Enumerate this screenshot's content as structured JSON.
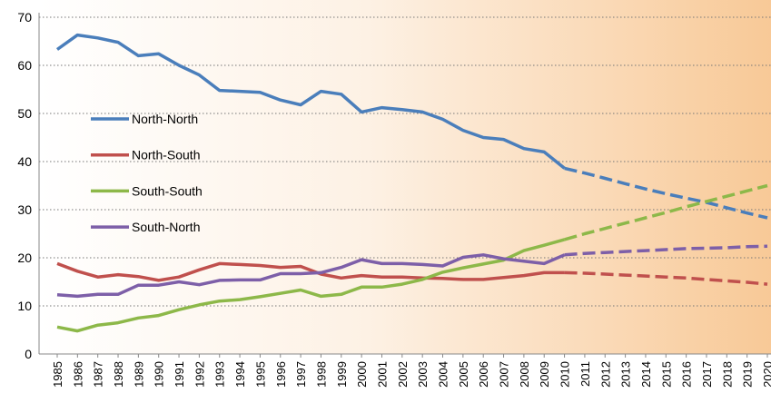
{
  "chart_data": {
    "type": "line",
    "categories": [
      "1985",
      "1986",
      "1987",
      "1988",
      "1989",
      "1990",
      "1991",
      "1992",
      "1993",
      "1994",
      "1995",
      "1996",
      "1997",
      "1998",
      "1999",
      "2000",
      "2001",
      "2002",
      "2003",
      "2004",
      "2005",
      "2006",
      "2007",
      "2008",
      "2009",
      "2010",
      "2011",
      "2012",
      "2013",
      "2014",
      "2015",
      "2016",
      "2017",
      "2018",
      "2019",
      "2020"
    ],
    "series": [
      {
        "name": "North-North",
        "color": "#4a7ebb",
        "values": [
          63.3,
          66.3,
          65.7,
          64.8,
          62,
          62.4,
          60,
          58,
          54.8,
          54.6,
          54.4,
          52.8,
          51.8,
          54.6,
          54,
          50.3,
          51.2,
          50.8,
          50.3,
          48.8,
          46.5,
          45,
          44.6,
          42.7,
          42,
          38.6,
          37.6,
          36.5,
          35.4,
          34.3,
          33.3,
          32.4,
          31.5,
          30.4,
          29.3,
          28.3
        ]
      },
      {
        "name": "North-South",
        "color": "#c0504d",
        "values": [
          18.8,
          17.2,
          16,
          16.5,
          16.1,
          15.3,
          16,
          17.5,
          18.8,
          18.6,
          18.4,
          18,
          18.2,
          16.6,
          15.8,
          16.3,
          16,
          16,
          15.8,
          15.7,
          15.5,
          15.5,
          15.9,
          16.3,
          16.9,
          16.9,
          16.8,
          16.6,
          16.4,
          16.2,
          16,
          15.8,
          15.5,
          15.2,
          14.9,
          14.5
        ]
      },
      {
        "name": "South-South",
        "color": "#8db849",
        "values": [
          5.6,
          4.8,
          6,
          6.5,
          7.5,
          8,
          9.2,
          10.2,
          11,
          11.3,
          11.9,
          12.6,
          13.3,
          12,
          12.4,
          13.9,
          13.9,
          14.5,
          15.5,
          17,
          17.9,
          18.7,
          19.5,
          21.5,
          22.6,
          23.8,
          25,
          26.1,
          27.2,
          28.3,
          29.4,
          30.6,
          31.7,
          32.8,
          33.9,
          35
        ]
      },
      {
        "name": "South-North",
        "color": "#7d5fa8",
        "values": [
          12.3,
          12,
          12.4,
          12.4,
          14.3,
          14.3,
          15,
          14.4,
          15.3,
          15.4,
          15.4,
          16.7,
          16.7,
          16.9,
          18,
          19.6,
          18.8,
          18.8,
          18.6,
          18.3,
          20.1,
          20.6,
          19.8,
          19.3,
          18.8,
          20.6,
          20.9,
          21.1,
          21.3,
          21.5,
          21.7,
          21.9,
          22,
          22.1,
          22.3,
          22.4
        ]
      }
    ],
    "dashed_from": "2010",
    "ylim": [
      0,
      70
    ],
    "yticks": [
      0,
      10,
      20,
      30,
      40,
      50,
      60,
      70
    ],
    "grid": true,
    "legend": "left"
  }
}
